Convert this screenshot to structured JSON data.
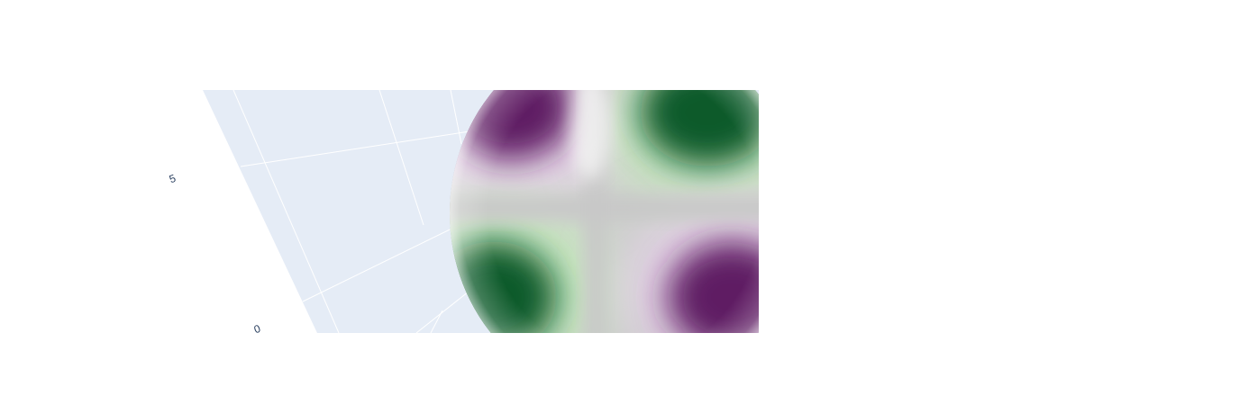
{
  "chart_data": {
    "type": "surface",
    "subtype": "sphere",
    "title": "",
    "colorscale": "PRGn",
    "colors": {
      "scene_background": "#e5ecf6",
      "gridline": "#ffffff",
      "tick_text": "#2a3f5f",
      "purple_dark": "#5e1a63",
      "purple_light": "#e9d6ec",
      "neutral": "#c8c8c8",
      "green_light": "#c9ecc1",
      "green_dark": "#0d5a2b"
    },
    "axes": {
      "z": {
        "tick_labels": [
          "0",
          "5"
        ],
        "tick_values": [
          0,
          5
        ],
        "range": [
          -1,
          8
        ]
      }
    },
    "showlegend": false,
    "showscale": false
  }
}
